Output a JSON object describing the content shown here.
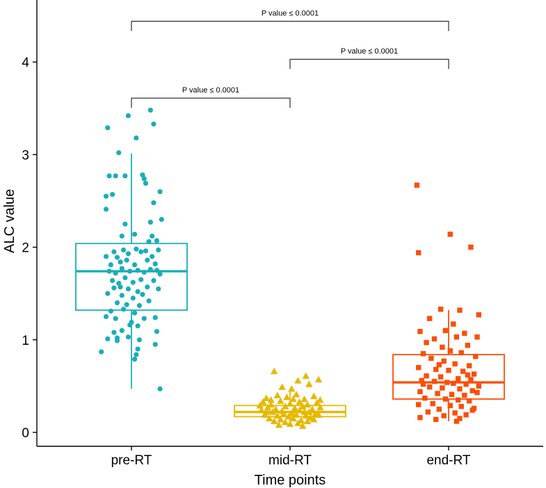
{
  "chart_data": {
    "type": "box-jitter",
    "title": "",
    "xlabel": "Time points",
    "ylabel": "ALC value",
    "ylim": [
      -0.15,
      4.65
    ],
    "yticks": [
      0,
      1,
      2,
      3,
      4
    ],
    "categories": [
      "pre-RT",
      "mid-RT",
      "end-RT"
    ],
    "groups": [
      {
        "name": "pre-RT",
        "color": "#1AAEB7",
        "marker": "circle",
        "box": {
          "whisker_low": 0.47,
          "q1": 1.32,
          "median": 1.74,
          "q3": 2.04,
          "whisker_high": 3.01
        },
        "points": [
          {
            "dx": -0.15,
            "y": 3.29
          },
          {
            "dx": -0.08,
            "y": 3.02
          },
          {
            "dx": -0.02,
            "y": 3.42
          },
          {
            "dx": 0.03,
            "y": 3.18
          },
          {
            "dx": 0.12,
            "y": 3.48
          },
          {
            "dx": 0.14,
            "y": 3.33
          },
          {
            "dx": -0.14,
            "y": 2.77
          },
          {
            "dx": -0.1,
            "y": 2.77
          },
          {
            "dx": -0.04,
            "y": 2.77
          },
          {
            "dx": 0.07,
            "y": 2.78
          },
          {
            "dx": 0.08,
            "y": 2.74
          },
          {
            "dx": 0.09,
            "y": 2.69
          },
          {
            "dx": 0.18,
            "y": 2.6
          },
          {
            "dx": -0.16,
            "y": 2.55
          },
          {
            "dx": -0.12,
            "y": 2.57
          },
          {
            "dx": -0.16,
            "y": 2.41
          },
          {
            "dx": 0.14,
            "y": 2.48
          },
          {
            "dx": 0.19,
            "y": 2.3
          },
          {
            "dx": -0.04,
            "y": 2.25
          },
          {
            "dx": 0.12,
            "y": 2.27
          },
          {
            "dx": 0.02,
            "y": 2.14
          },
          {
            "dx": -0.06,
            "y": 2.12
          },
          {
            "dx": 0.13,
            "y": 2.12
          },
          {
            "dx": 0.11,
            "y": 2.06
          },
          {
            "dx": 0.16,
            "y": 2.07
          },
          {
            "dx": -0.16,
            "y": 1.9
          },
          {
            "dx": -0.11,
            "y": 1.95
          },
          {
            "dx": -0.09,
            "y": 1.89
          },
          {
            "dx": -0.05,
            "y": 1.97
          },
          {
            "dx": -0.02,
            "y": 1.93
          },
          {
            "dx": 0.03,
            "y": 1.98
          },
          {
            "dx": 0.06,
            "y": 1.95
          },
          {
            "dx": 0.09,
            "y": 1.96
          },
          {
            "dx": 0.17,
            "y": 1.97
          },
          {
            "dx": 0.13,
            "y": 1.9
          },
          {
            "dx": -0.13,
            "y": 1.81
          },
          {
            "dx": -0.07,
            "y": 1.84
          },
          {
            "dx": -0.03,
            "y": 1.86
          },
          {
            "dx": 0.02,
            "y": 1.81
          },
          {
            "dx": 0.1,
            "y": 1.86
          },
          {
            "dx": 0.15,
            "y": 1.82
          },
          {
            "dx": -0.14,
            "y": 1.74
          },
          {
            "dx": -0.1,
            "y": 1.72
          },
          {
            "dx": -0.06,
            "y": 1.77
          },
          {
            "dx": -0.01,
            "y": 1.74
          },
          {
            "dx": 0.04,
            "y": 1.75
          },
          {
            "dx": 0.08,
            "y": 1.73
          },
          {
            "dx": 0.12,
            "y": 1.76
          },
          {
            "dx": 0.16,
            "y": 1.75
          },
          {
            "dx": 0.18,
            "y": 1.71
          },
          {
            "dx": -0.12,
            "y": 1.64
          },
          {
            "dx": -0.08,
            "y": 1.61
          },
          {
            "dx": -0.04,
            "y": 1.67
          },
          {
            "dx": 0.01,
            "y": 1.62
          },
          {
            "dx": 0.06,
            "y": 1.65
          },
          {
            "dx": 0.14,
            "y": 1.64
          },
          {
            "dx": -0.11,
            "y": 1.56
          },
          {
            "dx": -0.07,
            "y": 1.57
          },
          {
            "dx": -0.02,
            "y": 1.55
          },
          {
            "dx": 0.04,
            "y": 1.52
          },
          {
            "dx": 0.1,
            "y": 1.57
          },
          {
            "dx": 0.17,
            "y": 1.55
          },
          {
            "dx": -0.15,
            "y": 1.5
          },
          {
            "dx": -0.06,
            "y": 1.48
          },
          {
            "dx": 0.01,
            "y": 1.45
          },
          {
            "dx": 0.07,
            "y": 1.49
          },
          {
            "dx": -0.09,
            "y": 1.4
          },
          {
            "dx": -0.03,
            "y": 1.38
          },
          {
            "dx": 0.05,
            "y": 1.37
          },
          {
            "dx": 0.11,
            "y": 1.42
          },
          {
            "dx": -0.13,
            "y": 1.31
          },
          {
            "dx": -0.05,
            "y": 1.33
          },
          {
            "dx": 0.02,
            "y": 1.29
          },
          {
            "dx": -0.1,
            "y": 1.23
          },
          {
            "dx": -0.16,
            "y": 1.25
          },
          {
            "dx": 0.0,
            "y": 1.19
          },
          {
            "dx": 0.08,
            "y": 1.23
          },
          {
            "dx": 0.15,
            "y": 1.24
          },
          {
            "dx": -0.01,
            "y": 1.16
          },
          {
            "dx": 0.04,
            "y": 1.15
          },
          {
            "dx": -0.11,
            "y": 1.08
          },
          {
            "dx": -0.06,
            "y": 1.1
          },
          {
            "dx": 0.16,
            "y": 1.09
          },
          {
            "dx": -0.09,
            "y": 1.02
          },
          {
            "dx": -0.15,
            "y": 1.01
          },
          {
            "dx": -0.02,
            "y": 1.03
          },
          {
            "dx": 0.05,
            "y": 1.0
          },
          {
            "dx": -0.09,
            "y": 0.99
          },
          {
            "dx": 0.15,
            "y": 0.95
          },
          {
            "dx": 0.04,
            "y": 0.9
          },
          {
            "dx": -0.19,
            "y": 0.87
          },
          {
            "dx": 0.03,
            "y": 0.84
          },
          {
            "dx": 0.02,
            "y": 0.79
          },
          {
            "dx": 0.18,
            "y": 0.47
          }
        ]
      },
      {
        "name": "mid-RT",
        "color": "#E7B800",
        "marker": "triangle",
        "box": {
          "whisker_low": 0.08,
          "q1": 0.17,
          "median": 0.22,
          "q3": 0.29,
          "whisker_high": 0.47
        },
        "points": [
          {
            "dx": -0.1,
            "y": 0.66
          },
          {
            "dx": 0.1,
            "y": 0.61
          },
          {
            "dx": 0.05,
            "y": 0.56
          },
          {
            "dx": 0.18,
            "y": 0.57
          },
          {
            "dx": 0.12,
            "y": 0.52
          },
          {
            "dx": -0.05,
            "y": 0.49
          },
          {
            "dx": 0.01,
            "y": 0.47
          },
          {
            "dx": -0.15,
            "y": 0.37
          },
          {
            "dx": -0.08,
            "y": 0.4
          },
          {
            "dx": -0.02,
            "y": 0.38
          },
          {
            "dx": 0.04,
            "y": 0.41
          },
          {
            "dx": 0.09,
            "y": 0.36
          },
          {
            "dx": 0.15,
            "y": 0.39
          },
          {
            "dx": -0.17,
            "y": 0.33
          },
          {
            "dx": -0.12,
            "y": 0.3
          },
          {
            "dx": -0.06,
            "y": 0.34
          },
          {
            "dx": 0.0,
            "y": 0.31
          },
          {
            "dx": 0.06,
            "y": 0.33
          },
          {
            "dx": 0.11,
            "y": 0.3
          },
          {
            "dx": 0.17,
            "y": 0.32
          },
          {
            "dx": -0.14,
            "y": 0.27
          },
          {
            "dx": -0.09,
            "y": 0.25
          },
          {
            "dx": -0.03,
            "y": 0.28
          },
          {
            "dx": 0.03,
            "y": 0.26
          },
          {
            "dx": 0.08,
            "y": 0.28
          },
          {
            "dx": 0.14,
            "y": 0.25
          },
          {
            "dx": 0.19,
            "y": 0.27
          },
          {
            "dx": -0.18,
            "y": 0.24
          },
          {
            "dx": -0.11,
            "y": 0.22
          },
          {
            "dx": -0.05,
            "y": 0.23
          },
          {
            "dx": 0.01,
            "y": 0.21
          },
          {
            "dx": 0.06,
            "y": 0.24
          },
          {
            "dx": 0.12,
            "y": 0.22
          },
          {
            "dx": 0.16,
            "y": 0.2
          },
          {
            "dx": -0.16,
            "y": 0.19
          },
          {
            "dx": -0.08,
            "y": 0.18
          },
          {
            "dx": -0.01,
            "y": 0.17
          },
          {
            "dx": 0.04,
            "y": 0.19
          },
          {
            "dx": 0.1,
            "y": 0.18
          },
          {
            "dx": 0.18,
            "y": 0.19
          },
          {
            "dx": -0.13,
            "y": 0.15
          },
          {
            "dx": -0.06,
            "y": 0.14
          },
          {
            "dx": 0.02,
            "y": 0.15
          },
          {
            "dx": 0.07,
            "y": 0.13
          },
          {
            "dx": 0.13,
            "y": 0.16
          },
          {
            "dx": -0.1,
            "y": 0.12
          },
          {
            "dx": -0.03,
            "y": 0.11
          },
          {
            "dx": 0.05,
            "y": 0.1
          },
          {
            "dx": 0.11,
            "y": 0.12
          },
          {
            "dx": -0.07,
            "y": 0.08
          },
          {
            "dx": 0.0,
            "y": 0.09
          },
          {
            "dx": 0.08,
            "y": 0.07
          },
          {
            "dx": -0.19,
            "y": 0.29
          },
          {
            "dx": 0.19,
            "y": 0.35
          },
          {
            "dx": -0.04,
            "y": 0.2
          },
          {
            "dx": 0.15,
            "y": 0.14
          },
          {
            "dx": -0.15,
            "y": 0.22
          },
          {
            "dx": 0.09,
            "y": 0.22
          },
          {
            "dx": -0.12,
            "y": 0.35
          },
          {
            "dx": 0.02,
            "y": 0.36
          }
        ]
      },
      {
        "name": "end-RT",
        "color": "#FC4E07",
        "marker": "square",
        "box": {
          "whisker_low": 0.12,
          "q1": 0.36,
          "median": 0.54,
          "q3": 0.84,
          "whisker_high": 1.32
        },
        "points": [
          {
            "dx": -0.2,
            "y": 2.67
          },
          {
            "dx": 0.01,
            "y": 2.14
          },
          {
            "dx": 0.14,
            "y": 2.0
          },
          {
            "dx": -0.19,
            "y": 1.94
          },
          {
            "dx": -0.05,
            "y": 1.33
          },
          {
            "dx": 0.07,
            "y": 1.32
          },
          {
            "dx": 0.19,
            "y": 1.27
          },
          {
            "dx": -0.12,
            "y": 1.23
          },
          {
            "dx": 0.03,
            "y": 1.17
          },
          {
            "dx": -0.02,
            "y": 1.1
          },
          {
            "dx": -0.18,
            "y": 1.09
          },
          {
            "dx": 0.1,
            "y": 1.07
          },
          {
            "dx": -0.09,
            "y": 1.01
          },
          {
            "dx": 0.05,
            "y": 1.03
          },
          {
            "dx": 0.18,
            "y": 1.03
          },
          {
            "dx": -0.14,
            "y": 0.97
          },
          {
            "dx": 0.12,
            "y": 0.94
          },
          {
            "dx": -0.04,
            "y": 0.92
          },
          {
            "dx": 0.01,
            "y": 0.88
          },
          {
            "dx": -0.16,
            "y": 0.85
          },
          {
            "dx": 0.08,
            "y": 0.86
          },
          {
            "dx": 0.17,
            "y": 0.82
          },
          {
            "dx": -0.11,
            "y": 0.8
          },
          {
            "dx": -0.03,
            "y": 0.77
          },
          {
            "dx": 0.04,
            "y": 0.74
          },
          {
            "dx": 0.13,
            "y": 0.72
          },
          {
            "dx": -0.19,
            "y": 0.7
          },
          {
            "dx": -0.08,
            "y": 0.68
          },
          {
            "dx": 0.0,
            "y": 0.67
          },
          {
            "dx": 0.09,
            "y": 0.66
          },
          {
            "dx": 0.16,
            "y": 0.63
          },
          {
            "dx": -0.14,
            "y": 0.61
          },
          {
            "dx": -0.05,
            "y": 0.6
          },
          {
            "dx": 0.06,
            "y": 0.58
          },
          {
            "dx": 0.14,
            "y": 0.57
          },
          {
            "dx": -0.17,
            "y": 0.56
          },
          {
            "dx": -0.09,
            "y": 0.55
          },
          {
            "dx": -0.01,
            "y": 0.54
          },
          {
            "dx": 0.03,
            "y": 0.53
          },
          {
            "dx": 0.11,
            "y": 0.52
          },
          {
            "dx": 0.19,
            "y": 0.5
          },
          {
            "dx": -0.12,
            "y": 0.49
          },
          {
            "dx": -0.04,
            "y": 0.48
          },
          {
            "dx": 0.07,
            "y": 0.47
          },
          {
            "dx": 0.15,
            "y": 0.45
          },
          {
            "dx": -0.18,
            "y": 0.44
          },
          {
            "dx": -0.07,
            "y": 0.42
          },
          {
            "dx": 0.02,
            "y": 0.41
          },
          {
            "dx": 0.1,
            "y": 0.4
          },
          {
            "dx": 0.18,
            "y": 0.43
          },
          {
            "dx": -0.15,
            "y": 0.37
          },
          {
            "dx": -0.02,
            "y": 0.36
          },
          {
            "dx": 0.06,
            "y": 0.35
          },
          {
            "dx": 0.13,
            "y": 0.34
          },
          {
            "dx": -0.1,
            "y": 0.31
          },
          {
            "dx": -0.19,
            "y": 0.3
          },
          {
            "dx": 0.01,
            "y": 0.29
          },
          {
            "dx": 0.08,
            "y": 0.28
          },
          {
            "dx": -0.06,
            "y": 0.25
          },
          {
            "dx": 0.16,
            "y": 0.26
          },
          {
            "dx": -0.13,
            "y": 0.22
          },
          {
            "dx": 0.04,
            "y": 0.21
          },
          {
            "dx": -0.03,
            "y": 0.18
          },
          {
            "dx": 0.11,
            "y": 0.19
          },
          {
            "dx": -0.18,
            "y": 0.16
          },
          {
            "dx": 0.07,
            "y": 0.15
          },
          {
            "dx": 0.05,
            "y": 0.12
          },
          {
            "dx": -0.08,
            "y": 0.14
          },
          {
            "dx": 0.15,
            "y": 0.24
          },
          {
            "dx": -0.16,
            "y": 0.52
          },
          {
            "dx": 0.12,
            "y": 0.62
          },
          {
            "dx": -0.06,
            "y": 0.73
          }
        ]
      }
    ],
    "annotations": [
      {
        "from": "pre-RT",
        "to": "end-RT",
        "y": 4.44,
        "label": "P value ≤ 0.0001"
      },
      {
        "from": "mid-RT",
        "to": "end-RT",
        "y": 4.03,
        "label": "P value ≤ 0.0001"
      },
      {
        "from": "pre-RT",
        "to": "mid-RT",
        "y": 3.61,
        "label": "P value ≤ 0.0001"
      }
    ]
  }
}
